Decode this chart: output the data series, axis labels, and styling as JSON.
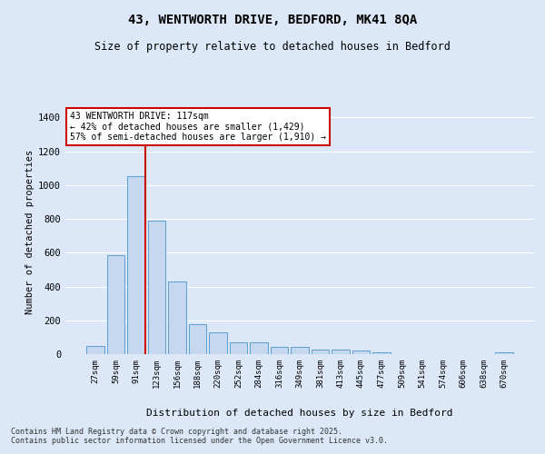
{
  "title": "43, WENTWORTH DRIVE, BEDFORD, MK41 8QA",
  "subtitle": "Size of property relative to detached houses in Bedford",
  "xlabel": "Distribution of detached houses by size in Bedford",
  "ylabel": "Number of detached properties",
  "categories": [
    "27sqm",
    "59sqm",
    "91sqm",
    "123sqm",
    "156sqm",
    "188sqm",
    "220sqm",
    "252sqm",
    "284sqm",
    "316sqm",
    "349sqm",
    "381sqm",
    "413sqm",
    "445sqm",
    "477sqm",
    "509sqm",
    "541sqm",
    "574sqm",
    "606sqm",
    "638sqm",
    "670sqm"
  ],
  "values": [
    50,
    585,
    1050,
    790,
    430,
    178,
    128,
    68,
    68,
    45,
    45,
    28,
    28,
    20,
    12,
    0,
    0,
    0,
    0,
    0,
    13
  ],
  "bar_color": "#c5d8f0",
  "bar_edge_color": "#5a9fd4",
  "background_color": "#dce8f8",
  "grid_color": "#ffffff",
  "vline_color": "#cc0000",
  "vline_x_index": 2,
  "annotation_text": "43 WENTWORTH DRIVE: 117sqm\n← 42% of detached houses are smaller (1,429)\n57% of semi-detached houses are larger (1,910) →",
  "annotation_box_color": "#ffffff",
  "annotation_box_edge": "#cc0000",
  "ylim": [
    0,
    1450
  ],
  "yticks": [
    0,
    200,
    400,
    600,
    800,
    1000,
    1200,
    1400
  ],
  "footer": "Contains HM Land Registry data © Crown copyright and database right 2025.\nContains public sector information licensed under the Open Government Licence v3.0."
}
